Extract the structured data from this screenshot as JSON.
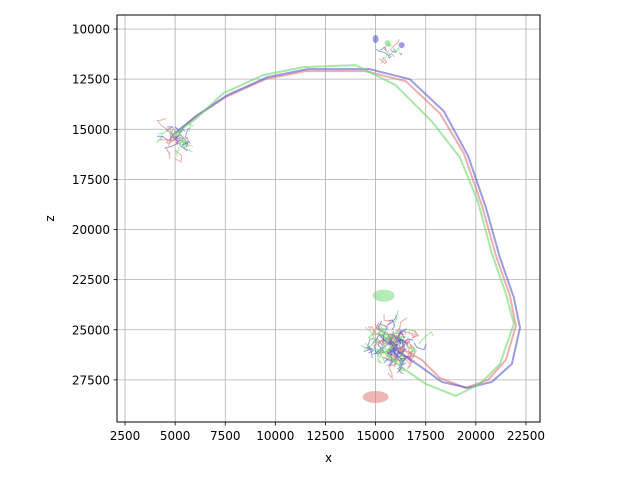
{
  "chart_data": {
    "type": "line",
    "title": "",
    "xlabel": "x",
    "ylabel": "z",
    "xlim": [
      2100,
      23200
    ],
    "ylim": [
      9300,
      29600
    ],
    "y_inverted": true,
    "grid": true,
    "xticks": [
      2500,
      5000,
      7500,
      10000,
      12500,
      15000,
      17500,
      20000,
      22500
    ],
    "xtick_labels": [
      "2500",
      "5000",
      "7500",
      "10000",
      "12500",
      "15000",
      "17500",
      "20000",
      "22500"
    ],
    "yticks": [
      10000,
      12500,
      15000,
      17500,
      20000,
      22500,
      25000,
      27500
    ],
    "ytick_labels": [
      "10000",
      "12500",
      "15000",
      "17500",
      "20000",
      "22500",
      "25000",
      "27500"
    ],
    "series": [
      {
        "color": "#e07a7a",
        "values": [
          [
            5100,
            15100
          ],
          [
            6000,
            14400
          ],
          [
            7500,
            13400
          ],
          [
            9500,
            12500
          ],
          [
            11500,
            12100
          ],
          [
            14500,
            12100
          ],
          [
            16500,
            12600
          ],
          [
            18200,
            14200
          ],
          [
            19400,
            16200
          ],
          [
            20300,
            18800
          ],
          [
            21000,
            21300
          ],
          [
            21700,
            23300
          ],
          [
            22000,
            24800
          ],
          [
            21500,
            26500
          ],
          [
            20600,
            27500
          ],
          [
            19500,
            27900
          ],
          [
            18200,
            27400
          ],
          [
            17300,
            26500
          ],
          [
            16200,
            25900
          ]
        ]
      },
      {
        "color": "#5a5ad0",
        "values": [
          [
            5000,
            15200
          ],
          [
            6100,
            14300
          ],
          [
            7600,
            13300
          ],
          [
            9600,
            12400
          ],
          [
            11600,
            12000
          ],
          [
            14700,
            12000
          ],
          [
            16700,
            12500
          ],
          [
            18400,
            14100
          ],
          [
            19600,
            16300
          ],
          [
            20500,
            18900
          ],
          [
            21200,
            21400
          ],
          [
            21900,
            23400
          ],
          [
            22200,
            24900
          ],
          [
            21800,
            26700
          ],
          [
            20800,
            27600
          ],
          [
            19600,
            27900
          ],
          [
            18300,
            27600
          ],
          [
            17200,
            26800
          ],
          [
            16000,
            26000
          ]
        ]
      },
      {
        "color": "#6cd86c",
        "values": [
          [
            4900,
            15300
          ],
          [
            6000,
            14500
          ],
          [
            7400,
            13200
          ],
          [
            9400,
            12300
          ],
          [
            11400,
            11900
          ],
          [
            14000,
            11800
          ],
          [
            16000,
            12800
          ],
          [
            17800,
            14600
          ],
          [
            19200,
            16400
          ],
          [
            20100,
            18600
          ],
          [
            20800,
            21200
          ],
          [
            21500,
            23200
          ],
          [
            21900,
            24700
          ],
          [
            21200,
            26700
          ],
          [
            20200,
            27700
          ],
          [
            19000,
            28300
          ],
          [
            17500,
            27700
          ],
          [
            16200,
            26800
          ],
          [
            15300,
            26000
          ]
        ]
      }
    ]
  }
}
